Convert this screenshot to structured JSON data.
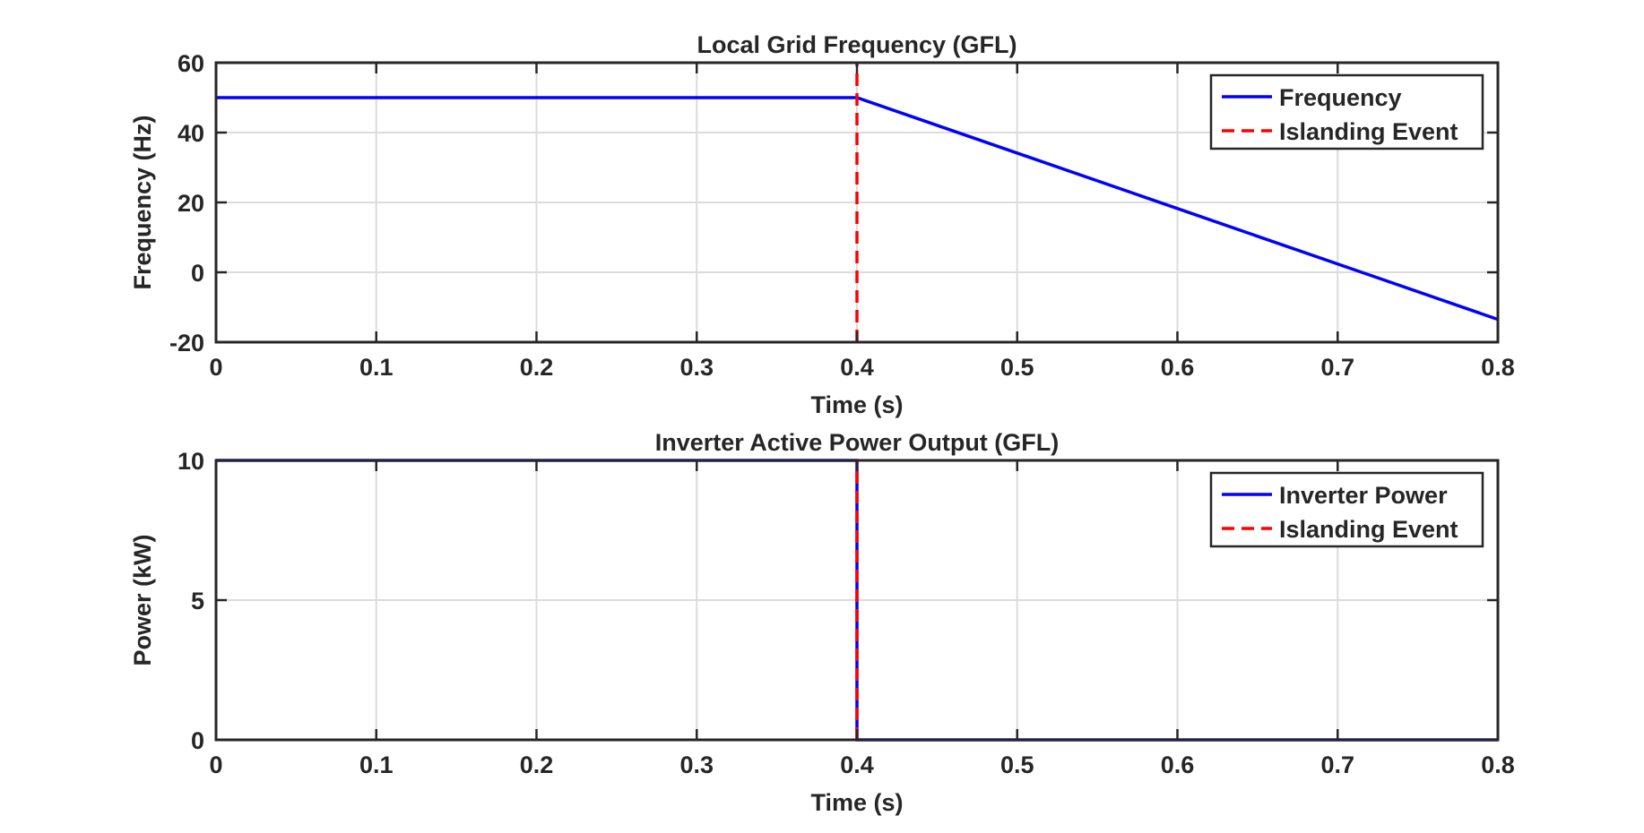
{
  "chart_data": [
    {
      "type": "line",
      "title": "Local Grid Frequency (GFL)",
      "xlabel": "Time (s)",
      "ylabel": "Frequency (Hz)",
      "xlim": [
        0,
        0.8
      ],
      "ylim": [
        -20,
        60
      ],
      "xticks": [
        "0",
        "0.1",
        "0.2",
        "0.3",
        "0.4",
        "0.5",
        "0.6",
        "0.7",
        "0.8"
      ],
      "yticks": [
        "-20",
        "0",
        "20",
        "40",
        "60"
      ],
      "grid": true,
      "legend_position": "top-right",
      "series": [
        {
          "name": "Frequency",
          "style": "solid",
          "color": "#0000ff",
          "x": [
            0,
            0.4,
            0.8
          ],
          "y": [
            50,
            50,
            -13.5
          ]
        },
        {
          "name": "Islanding Event",
          "style": "dashed",
          "color": "#ff0000",
          "x": [
            0.4,
            0.4
          ],
          "y": [
            -20,
            60
          ]
        }
      ]
    },
    {
      "type": "line",
      "title": "Inverter Active Power Output (GFL)",
      "xlabel": "Time (s)",
      "ylabel": "Power (kW)",
      "xlim": [
        0,
        0.8
      ],
      "ylim": [
        0,
        10
      ],
      "xticks": [
        "0",
        "0.1",
        "0.2",
        "0.3",
        "0.4",
        "0.5",
        "0.6",
        "0.7",
        "0.8"
      ],
      "yticks": [
        "0",
        "5",
        "10"
      ],
      "grid": true,
      "legend_position": "top-right",
      "series": [
        {
          "name": "Inverter Power",
          "style": "solid",
          "color": "#0000ff",
          "x": [
            0,
            0.4,
            0.4,
            0.8
          ],
          "y": [
            10,
            10,
            0,
            0
          ]
        },
        {
          "name": "Islanding Event",
          "style": "dashed",
          "color": "#ff0000",
          "x": [
            0.4,
            0.4
          ],
          "y": [
            0,
            10
          ]
        }
      ]
    }
  ]
}
